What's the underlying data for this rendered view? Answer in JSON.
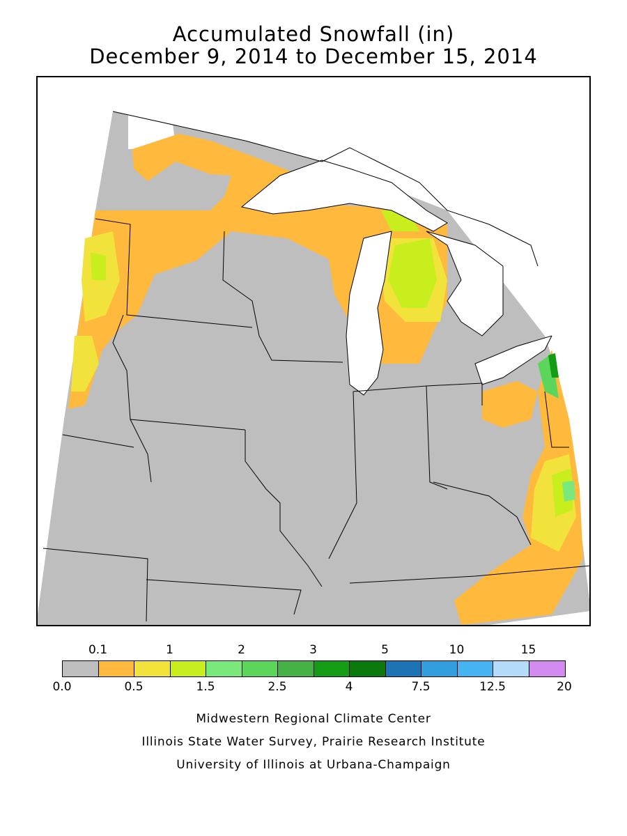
{
  "title": {
    "line1": "Accumulated Snowfall (in)",
    "line2": "December 9, 2014 to December 15, 2014"
  },
  "map": {
    "region": "Midwest",
    "fill_colors": {
      "none": "#bebebe",
      "lakes": "#ffffff",
      "c_0_1": "#ffb93c",
      "c_0_5": "#f2e33c",
      "c_1": "#c8ee1e",
      "c_1_5": "#7ae87a",
      "c_2": "#5bd65b",
      "c_2_5": "#46b246",
      "c_3": "#149c14",
      "c_4": "#0a780a"
    }
  },
  "legend": {
    "top_labels": [
      "0.1",
      "1",
      "2",
      "3",
      "5",
      "10",
      "15"
    ],
    "bottom_labels": [
      "0.0",
      "0.5",
      "1.5",
      "2.5",
      "4",
      "7.5",
      "12.5",
      "20"
    ],
    "colors": [
      "#bebebe",
      "#ffb93c",
      "#f2e33c",
      "#c8ee1e",
      "#7ae87a",
      "#5bd65b",
      "#46b246",
      "#149c14",
      "#0a780a",
      "#1e73b4",
      "#329fdc",
      "#46b4f0",
      "#b4dcf8",
      "#d28cf0"
    ]
  },
  "credits": {
    "line1": "Midwestern Regional Climate Center",
    "line2": "Illinois State Water Survey, Prairie Research Institute",
    "line3": "University of Illinois at Urbana-Champaign"
  }
}
